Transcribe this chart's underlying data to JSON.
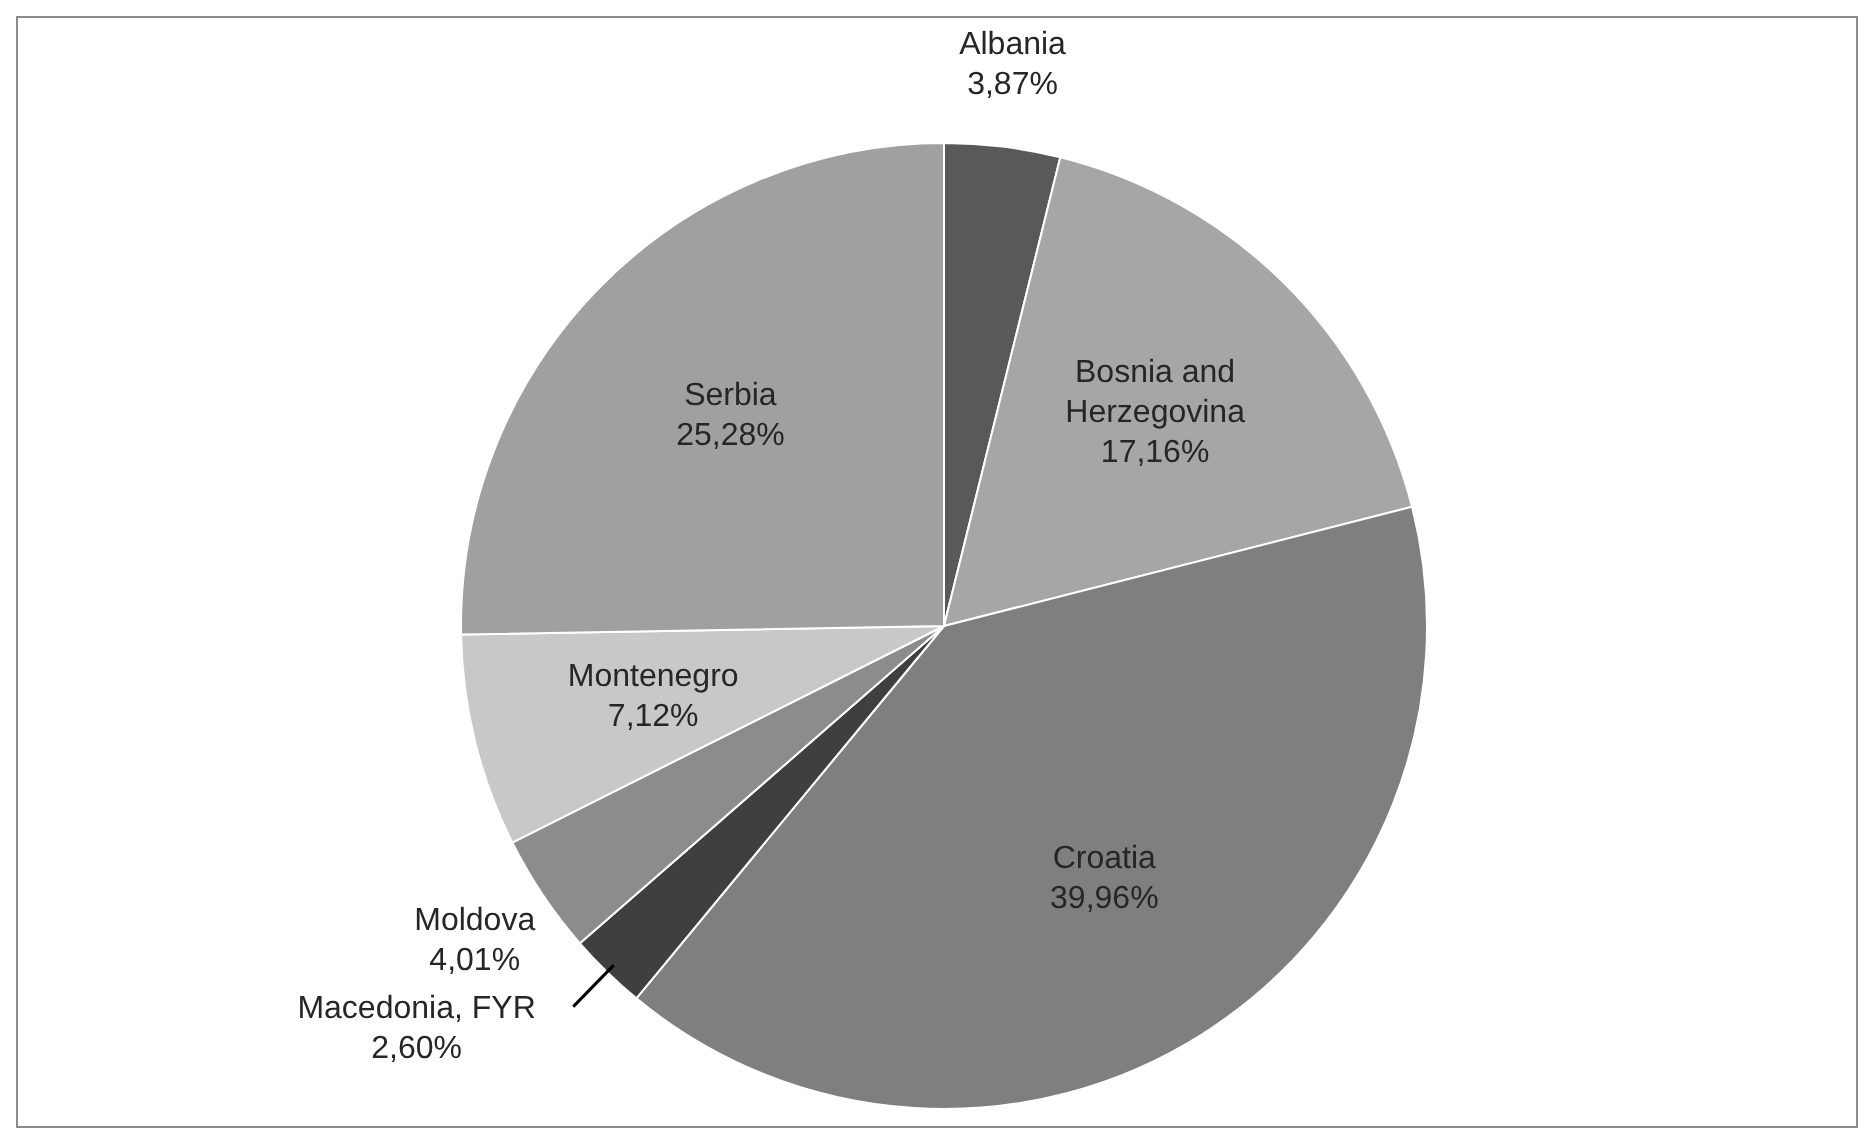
{
  "chart_data": {
    "type": "pie",
    "categories": [
      "Albania",
      "Bosnia and Herzegovina",
      "Croatia",
      "Macedonia, FYR",
      "Moldova",
      "Montenegro",
      "Serbia"
    ],
    "values": [
      3.87,
      17.16,
      39.96,
      2.6,
      4.01,
      7.12,
      25.28
    ],
    "value_labels": [
      "3,87%",
      "17,16%",
      "39,96%",
      "2,60%",
      "4,01%",
      "7,12%",
      "25,28%"
    ],
    "colors": [
      "#595959",
      "#a6a6a6",
      "#7f7f7f",
      "#3f3f3f",
      "#8c8c8c",
      "#c8c8c8",
      "#a0a0a0"
    ],
    "legend": false
  }
}
